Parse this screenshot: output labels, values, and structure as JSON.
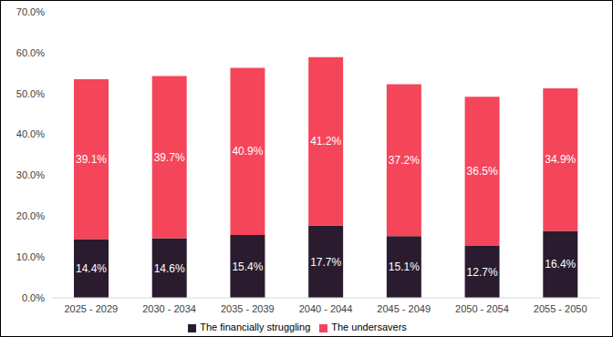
{
  "chart_data": {
    "type": "bar",
    "stacked": true,
    "data_labels": true,
    "grid": false,
    "legend": "bottom",
    "categories": [
      "2025 - 2029",
      "2030 - 2034",
      "2035 - 2039",
      "2040 - 2044",
      "2045 - 2049",
      "2050 - 2054",
      "2055 - 2050"
    ],
    "series": [
      {
        "name": "The financially struggling",
        "color": "#2b1b2e",
        "values": [
          14.4,
          14.6,
          15.4,
          17.7,
          15.1,
          12.7,
          16.4
        ],
        "value_labels": [
          "14.4%",
          "14.6%",
          "15.4%",
          "17.7%",
          "15.1%",
          "12.7%",
          "16.4%"
        ]
      },
      {
        "name": "The undersavers",
        "color": "#f4455a",
        "values": [
          39.1,
          39.7,
          40.9,
          41.2,
          37.2,
          36.5,
          34.9
        ],
        "value_labels": [
          "39.1%",
          "39.7%",
          "40.9%",
          "41.2%",
          "37.2%",
          "36.5%",
          "34.9%"
        ]
      }
    ],
    "ylim": [
      0,
      70
    ],
    "yticks": [
      {
        "value": 0,
        "label": "0.0%"
      },
      {
        "value": 10,
        "label": "10.0%"
      },
      {
        "value": 20,
        "label": "20.0%"
      },
      {
        "value": 30,
        "label": "30.0%"
      },
      {
        "value": 40,
        "label": "40.0%"
      },
      {
        "value": 50,
        "label": "50.0%"
      },
      {
        "value": 60,
        "label": "60.0%"
      },
      {
        "value": 70,
        "label": "70.0%"
      }
    ]
  }
}
